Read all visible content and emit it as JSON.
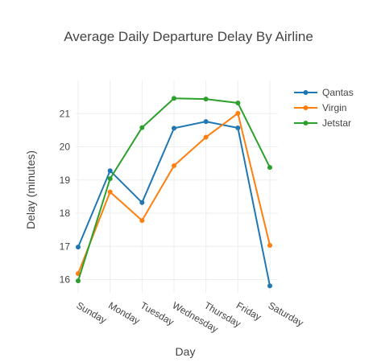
{
  "chart_data": {
    "type": "line",
    "title": "Average Daily Departure Delay By Airline",
    "xlabel": "Day",
    "ylabel": "Delay (minutes)",
    "categories": [
      "Sunday",
      "Monday",
      "Tuesday",
      "Wednesday",
      "Thursday",
      "Friday",
      "Saturday"
    ],
    "ylim": [
      15.6,
      22.0
    ],
    "yticks": [
      16,
      17,
      18,
      19,
      20,
      21
    ],
    "grid": true,
    "legend_position": "top-right",
    "series": [
      {
        "name": "Qantas",
        "color": "#1f77b4",
        "values": [
          16.98,
          19.28,
          18.32,
          20.56,
          20.76,
          20.57,
          15.81
        ]
      },
      {
        "name": "Virgin",
        "color": "#ff7f0e",
        "values": [
          16.18,
          18.64,
          17.78,
          19.43,
          20.29,
          21.01,
          17.03
        ]
      },
      {
        "name": "Jetstar",
        "color": "#2ca02c",
        "values": [
          15.96,
          19.04,
          20.58,
          21.46,
          21.44,
          21.32,
          19.38
        ]
      }
    ]
  }
}
